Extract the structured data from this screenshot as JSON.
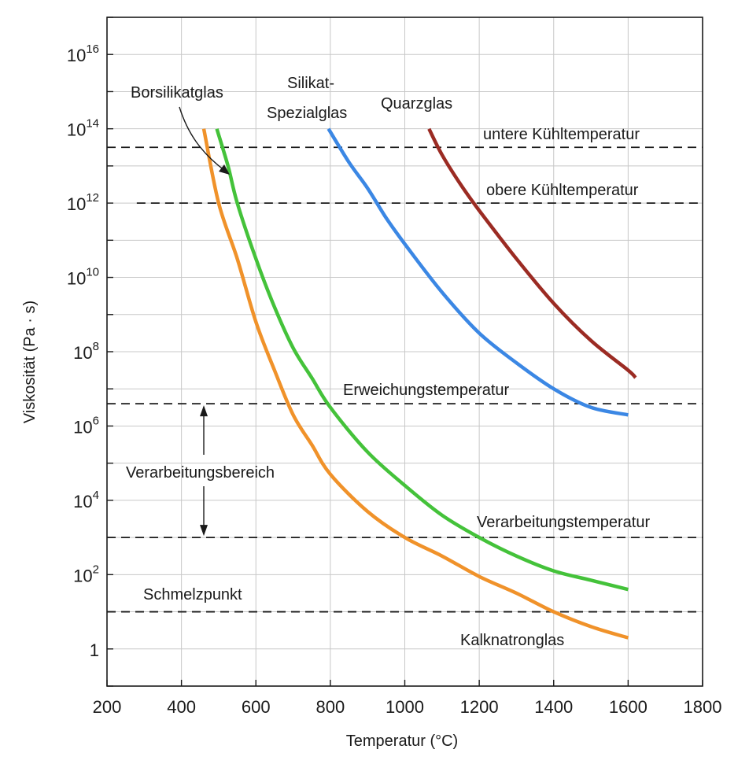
{
  "chart_data": {
    "type": "line",
    "title": "",
    "xlabel": "Temperatur (°C)",
    "ylabel": "Viskosität (Pa · s)",
    "xlim": [
      200,
      1800
    ],
    "ylim_log10": [
      -1,
      17
    ],
    "y_scale": "log",
    "grid": true,
    "x_ticks": [
      {
        "value": 200,
        "label": "200"
      },
      {
        "value": 400,
        "label": "400"
      },
      {
        "value": 600,
        "label": "600"
      },
      {
        "value": 800,
        "label": "800"
      },
      {
        "value": 1000,
        "label": "1000"
      },
      {
        "value": 1200,
        "label": "1200"
      },
      {
        "value": 1400,
        "label": "1400"
      },
      {
        "value": 1600,
        "label": "1600"
      },
      {
        "value": 1800,
        "label": "1800"
      }
    ],
    "y_ticks": [
      {
        "exp": 0,
        "base": "1",
        "sup": ""
      },
      {
        "exp": 2,
        "base": "10",
        "sup": "2"
      },
      {
        "exp": 4,
        "base": "10",
        "sup": "4"
      },
      {
        "exp": 6,
        "base": "10",
        "sup": "6"
      },
      {
        "exp": 8,
        "base": "10",
        "sup": "8"
      },
      {
        "exp": 10,
        "base": "10",
        "sup": "10"
      },
      {
        "exp": 12,
        "base": "10",
        "sup": "12"
      },
      {
        "exp": 14,
        "base": "10",
        "sup": "14"
      },
      {
        "exp": 16,
        "base": "10",
        "sup": "16"
      }
    ],
    "series": [
      {
        "name": "Kalknatronglas",
        "color": "#f0922a",
        "x": [
          460,
          500,
          550,
          600,
          650,
          700,
          750,
          800,
          900,
          1000,
          1100,
          1200,
          1300,
          1400,
          1500,
          1600
        ],
        "y_log10": [
          14,
          12,
          10.5,
          8.8,
          7.5,
          6.3,
          5.5,
          4.7,
          3.7,
          3.0,
          2.5,
          1.95,
          1.5,
          1.0,
          0.6,
          0.3
        ]
      },
      {
        "name": "Borsilikatglas",
        "color": "#44c23a",
        "x": [
          495,
          525,
          550,
          600,
          650,
          700,
          750,
          800,
          900,
          1000,
          1100,
          1200,
          1300,
          1400,
          1500,
          1600
        ],
        "y_log10": [
          14,
          13,
          12,
          10.5,
          9.2,
          8.1,
          7.3,
          6.5,
          5.3,
          4.4,
          3.6,
          3.0,
          2.5,
          2.1,
          1.85,
          1.6
        ]
      },
      {
        "name": "Silikat-Spezialglas",
        "color": "#3b87e4",
        "x": [
          795,
          850,
          900,
          950,
          1000,
          1100,
          1200,
          1300,
          1400,
          1500,
          1600
        ],
        "y_log10": [
          14,
          13.1,
          12.4,
          11.6,
          10.9,
          9.6,
          8.5,
          7.7,
          7.0,
          6.5,
          6.3
        ]
      },
      {
        "name": "Quarzglas",
        "color": "#9b2b23",
        "x": [
          1065,
          1100,
          1150,
          1200,
          1300,
          1400,
          1500,
          1600,
          1620
        ],
        "y_log10": [
          14,
          13.3,
          12.5,
          11.8,
          10.5,
          9.3,
          8.3,
          7.5,
          7.3
        ]
      }
    ],
    "reference_lines": [
      {
        "name": "untere Kühltemperatur",
        "y_log10": 13.5,
        "x_start": 200
      },
      {
        "name": "obere Kühltemperatur",
        "y_log10": 12.0,
        "x_start": 280
      },
      {
        "name": "Erweichungstemperatur",
        "y_log10": 6.6,
        "x_start": 200
      },
      {
        "name": "Verarbeitungstemperatur",
        "y_log10": 3.0,
        "x_start": 200
      },
      {
        "name": "Schmelzpunkt",
        "y_log10": 1.0,
        "x_start": 200
      }
    ],
    "range_annotation": {
      "label": "Verarbeitungsbereich",
      "x": 460,
      "y_from_log10": 6.6,
      "y_to_log10": 3.0
    }
  }
}
